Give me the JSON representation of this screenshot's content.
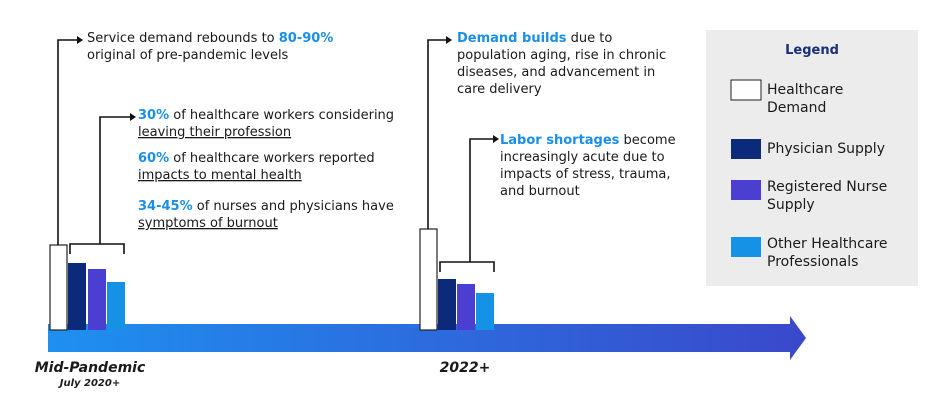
{
  "mid_pandemic": {
    "label": "Mid-Pandemic",
    "date": "July 2020+",
    "demand": {
      "text": "Service demand rebounds to ",
      "highlight": "80-90%",
      "line2": "original of pre-pandemic levels"
    },
    "workforce": [
      {
        "highlight": "30%",
        "text": " of healthcare workers considering",
        "underlined": "leaving their profession"
      },
      {
        "highlight": "60%",
        "text": " of healthcare workers reported",
        "underlined": "impacts to mental health"
      },
      {
        "highlight": "34-45%",
        "text": " of nurses and physicians have",
        "underlined": "symptoms of burnout"
      }
    ]
  },
  "later": {
    "label": "2022+",
    "demand": {
      "highlight": "Demand builds",
      "text": " due to",
      "lines": [
        "population aging, rise in chronic",
        "diseases, and advancement in",
        "care delivery"
      ]
    },
    "labor": {
      "highlight": "Labor shortages",
      "text": " become",
      "lines": [
        "increasingly acute due to",
        "impacts of stress, trauma,",
        "and burnout"
      ]
    }
  },
  "legend": {
    "title": "Legend",
    "items": [
      {
        "lines": [
          "Healthcare",
          "Demand"
        ]
      },
      {
        "lines": [
          "Physician Supply"
        ]
      },
      {
        "lines": [
          "Registered Nurse",
          "Supply"
        ]
      },
      {
        "lines": [
          "Other Healthcare",
          "Professionals"
        ]
      }
    ]
  }
}
